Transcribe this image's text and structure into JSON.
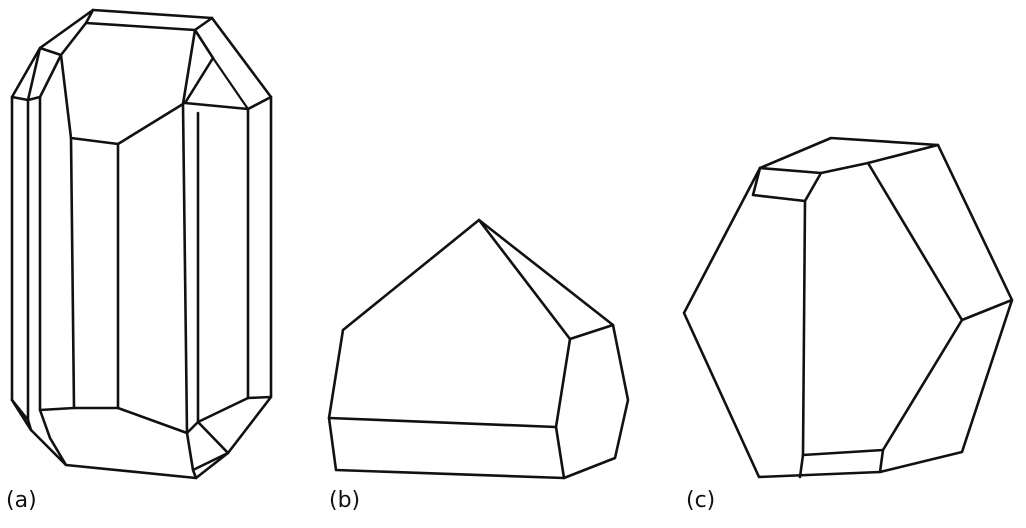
{
  "panels": [
    {
      "id": "a",
      "label": "(a)"
    },
    {
      "id": "b",
      "label": "(b)"
    },
    {
      "id": "c",
      "label": "(c)"
    }
  ],
  "colors": {
    "line": "#111111",
    "background": "#ffffff"
  }
}
